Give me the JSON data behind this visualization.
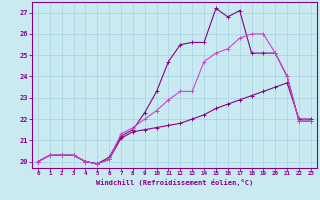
{
  "xlabel": "Windchill (Refroidissement éolien,°C)",
  "xlim": [
    -0.5,
    23.5
  ],
  "ylim": [
    19.7,
    27.5
  ],
  "xticks": [
    0,
    1,
    2,
    3,
    4,
    5,
    6,
    7,
    8,
    9,
    10,
    11,
    12,
    13,
    14,
    15,
    16,
    17,
    18,
    19,
    20,
    21,
    22,
    23
  ],
  "yticks": [
    20,
    21,
    22,
    23,
    24,
    25,
    26,
    27
  ],
  "background_color": "#c8eaf0",
  "grid_color": "#b0d8e8",
  "line_color1": "#880088",
  "line_color2": "#cc44cc",
  "series": [
    {
      "color": "#880088",
      "x": [
        0,
        1,
        2,
        3,
        4,
        5,
        6,
        7,
        8,
        9,
        10,
        11,
        12,
        13,
        14,
        15,
        16,
        17,
        18,
        19,
        20,
        21,
        22,
        23
      ],
      "y": [
        20.0,
        20.3,
        20.3,
        20.3,
        20.0,
        19.9,
        20.1,
        21.1,
        21.4,
        21.5,
        21.6,
        21.7,
        21.8,
        22.0,
        22.2,
        22.5,
        22.7,
        22.9,
        23.1,
        23.3,
        23.5,
        23.7,
        22.0,
        22.0
      ]
    },
    {
      "color": "#880088",
      "x": [
        0,
        1,
        2,
        3,
        4,
        5,
        6,
        7,
        8,
        9,
        10,
        11,
        12,
        13,
        14,
        15,
        16,
        17,
        18,
        19,
        20,
        21,
        22,
        23
      ],
      "y": [
        20.0,
        20.3,
        20.3,
        20.3,
        20.0,
        19.9,
        20.2,
        21.2,
        21.5,
        22.3,
        23.3,
        24.7,
        25.5,
        25.6,
        25.6,
        27.2,
        26.8,
        27.1,
        25.1,
        25.1,
        25.1,
        24.0,
        21.9,
        21.9
      ]
    },
    {
      "color": "#cc44cc",
      "x": [
        0,
        1,
        2,
        3,
        4,
        5,
        6,
        7,
        8,
        9,
        10,
        11,
        12,
        13,
        14,
        15,
        16,
        17,
        18,
        19,
        20,
        21,
        22,
        23
      ],
      "y": [
        20.0,
        20.3,
        20.3,
        20.3,
        20.0,
        19.9,
        20.1,
        21.3,
        21.6,
        22.0,
        22.4,
        22.9,
        23.3,
        23.3,
        24.7,
        25.1,
        25.3,
        25.8,
        26.0,
        26.0,
        25.1,
        24.0,
        21.9,
        21.9
      ]
    }
  ]
}
